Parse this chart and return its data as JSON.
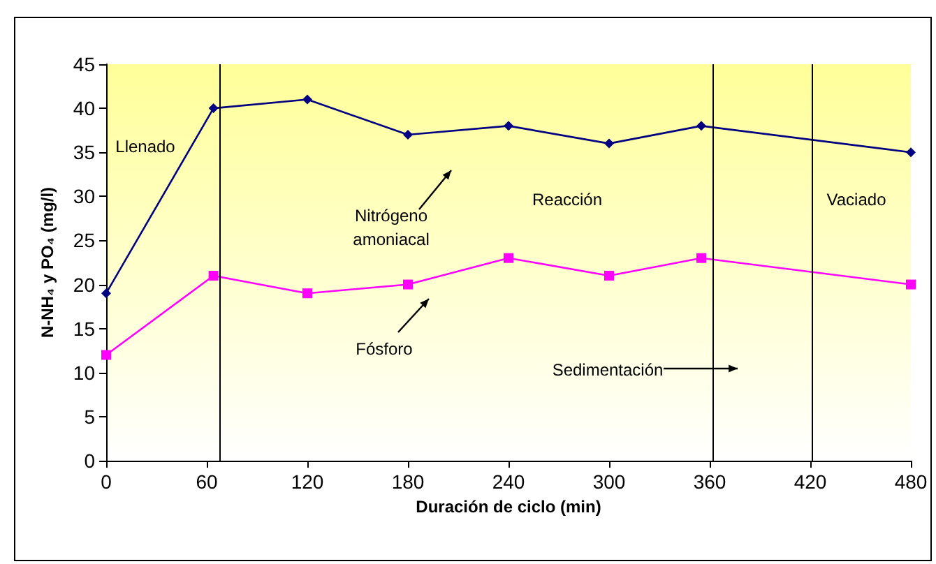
{
  "chart_data": {
    "type": "line",
    "xlabel": "Duración de ciclo (min)",
    "ylabel": "N-NH₄ y PO₄ (mg/l)",
    "x": [
      0,
      64,
      120,
      180,
      240,
      300,
      355,
      480
    ],
    "series": [
      {
        "color": "#000080",
        "marker": "diamond",
        "values": [
          19,
          40,
          41,
          37,
          38,
          36,
          38,
          35
        ]
      },
      {
        "color": "#ff00ff",
        "marker": "square",
        "values": [
          12,
          21,
          19,
          20,
          23,
          21,
          23,
          20
        ]
      }
    ],
    "xlim": [
      0,
      480
    ],
    "xticks": [
      0,
      60,
      120,
      180,
      240,
      300,
      360,
      420,
      480
    ],
    "ylim": [
      0,
      45
    ],
    "yticks": [
      0,
      5,
      10,
      15,
      20,
      25,
      30,
      35,
      40,
      45
    ],
    "grid": false,
    "ref_lines": [
      {
        "axis": "x",
        "value": 68,
        "color": "#000000"
      },
      {
        "axis": "x",
        "value": 362,
        "color": "#000000"
      },
      {
        "axis": "x",
        "value": 421,
        "color": "#000000"
      }
    ],
    "annotations": [
      "Llenado",
      "Nitrógeno amoniacal",
      "Reacción",
      "Vaciado",
      "Fósforo",
      "Sedimentación"
    ]
  }
}
